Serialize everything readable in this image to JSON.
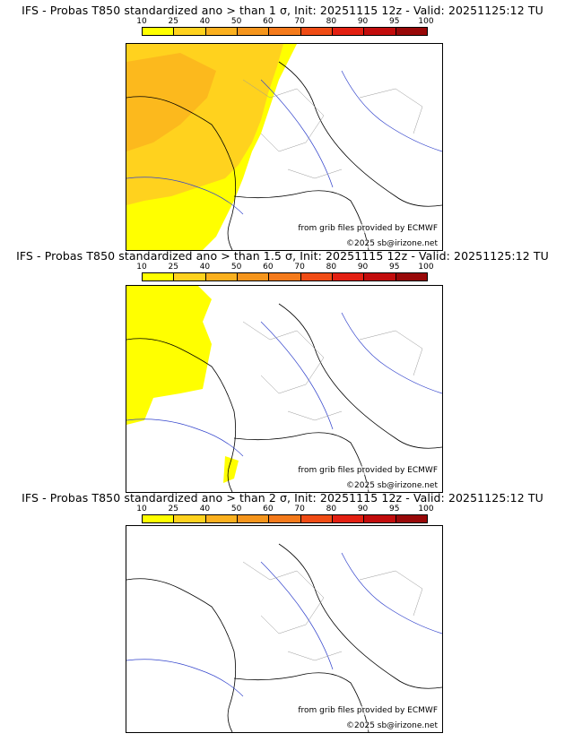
{
  "legend": {
    "ticks": [
      "10",
      "25",
      "40",
      "50",
      "60",
      "70",
      "80",
      "90",
      "95",
      "100"
    ],
    "colors": [
      "#ffff00",
      "#ffd21e",
      "#fbb01e",
      "#f5951c",
      "#f47a1b",
      "#f04c15",
      "#e32012",
      "#c20c0c",
      "#980808"
    ]
  },
  "panels": [
    {
      "title": "IFS - Probas T850  standardized ano > than 1 σ, Init: 20251115 12z - Valid: 20251125:12 TU",
      "source": "from grib files provided by ECMWF",
      "copyright": "©2025 sb@irizone.net"
    },
    {
      "title": "IFS - Probas T850  standardized ano > than 1.5 σ, Init: 20251115 12z - Valid: 20251125:12 TU",
      "source": "from grib files provided by ECMWF",
      "copyright": "©2025 sb@irizone.net"
    },
    {
      "title": "IFS - Probas T850  standardized ano > than 2 σ, Init: 20251115 12z - Valid: 20251125:12 TU",
      "source": "from grib files provided by ECMWF",
      "copyright": "©2025 sb@irizone.net"
    }
  ]
}
